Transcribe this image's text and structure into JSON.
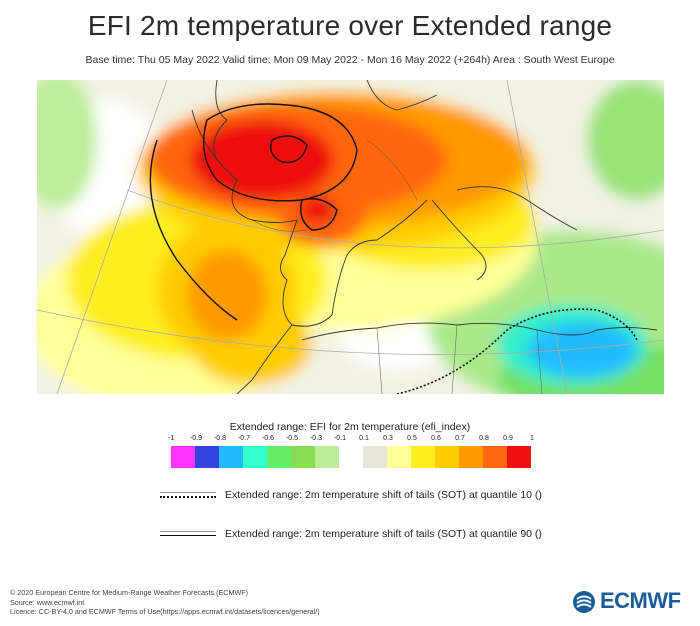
{
  "header": {
    "title": "EFI 2m temperature over Extended range",
    "subtitle": "Base time: Thu 05 May 2022 Valid time: Mon 09 May 2022 - Mon 16 May 2022 (+264h) Area : South West Europe"
  },
  "legend": {
    "title": "Extended range: EFI for 2m temperature (efi_index)",
    "ticks": [
      "-1",
      "-0.9",
      "-0.8",
      "-0.7",
      "-0.6",
      "-0.5",
      "-0.3",
      "-0.1",
      "0.1",
      "0.3",
      "0.5",
      "0.6",
      "0.7",
      "0.8",
      "0.9",
      "1"
    ],
    "colors": [
      "#ff33ff",
      "#3344dd",
      "#22bbff",
      "#33ffcc",
      "#66ee66",
      "#88dd55",
      "#bbee99",
      "#ffffff",
      "#e6e6d6",
      "#ffff99",
      "#ffee22",
      "#ffcc00",
      "#ff9900",
      "#ff6611",
      "#ee1111"
    ],
    "sot_low_label": "Extended range: 2m temperature shift of tails (SOT) at quantile 10 ()",
    "sot_high_label": "Extended range: 2m temperature shift of tails (SOT) at quantile 90 ()"
  },
  "footer": {
    "copyright": "© 2020 European Centre for Medium-Range Weather Forecasts (ECMWF)",
    "source": "Source: www.ecmwf.int",
    "licence": "Licence: CC-BY-4.0 and ECMWF Terms of Use(https://apps.ecmwf.int/datasets/licences/general/)",
    "logo_text": "ECMWF"
  },
  "colors": {
    "brand": "#1a5c99"
  }
}
